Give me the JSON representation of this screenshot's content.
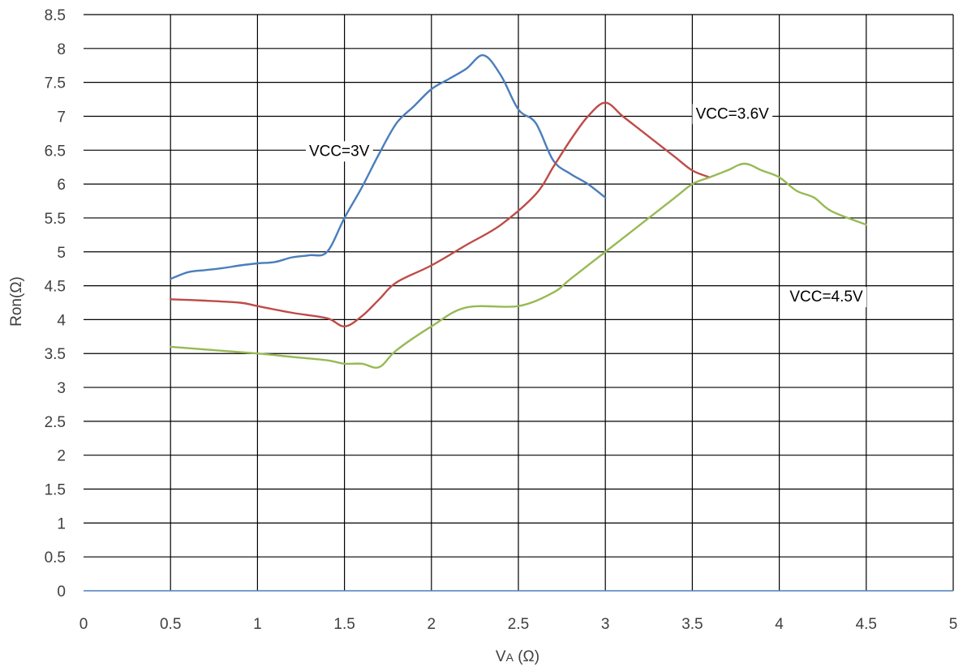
{
  "chart_data": {
    "type": "line",
    "title": "",
    "xlabel": "VA (Ω)",
    "ylabel": "Ron(Ω)",
    "xlim": [
      0,
      5
    ],
    "ylim": [
      0,
      8.5
    ],
    "x_ticks": [
      "0",
      "0.5",
      "1",
      "1.5",
      "2",
      "2.5",
      "3",
      "3.5",
      "4",
      "4.5",
      "5"
    ],
    "y_ticks": [
      "0",
      "0.5",
      "1",
      "1.5",
      "2",
      "2.5",
      "3",
      "3.5",
      "4",
      "4.5",
      "5",
      "5.5",
      "6",
      "6.5",
      "7",
      "7.5",
      "8",
      "8.5"
    ],
    "grid": true,
    "legend": "none",
    "series": [
      {
        "name": "VCC=3V",
        "color": "#4a7ebb",
        "points": [
          [
            0.5,
            4.6
          ],
          [
            0.6,
            4.7
          ],
          [
            0.7,
            4.73
          ],
          [
            0.8,
            4.76
          ],
          [
            0.9,
            4.8
          ],
          [
            1.0,
            4.83
          ],
          [
            1.1,
            4.85
          ],
          [
            1.2,
            4.92
          ],
          [
            1.3,
            4.95
          ],
          [
            1.4,
            5.0
          ],
          [
            1.5,
            5.5
          ],
          [
            1.6,
            5.95
          ],
          [
            1.7,
            6.45
          ],
          [
            1.8,
            6.9
          ],
          [
            1.9,
            7.15
          ],
          [
            2.0,
            7.4
          ],
          [
            2.1,
            7.55
          ],
          [
            2.2,
            7.7
          ],
          [
            2.3,
            7.9
          ],
          [
            2.4,
            7.6
          ],
          [
            2.5,
            7.1
          ],
          [
            2.6,
            6.9
          ],
          [
            2.7,
            6.35
          ],
          [
            2.8,
            6.15
          ],
          [
            2.9,
            6.0
          ],
          [
            3.0,
            5.8
          ]
        ]
      },
      {
        "name": "VCC=3.6V",
        "color": "#be4b48",
        "points": [
          [
            0.5,
            4.3
          ],
          [
            0.7,
            4.28
          ],
          [
            0.9,
            4.25
          ],
          [
            1.0,
            4.2
          ],
          [
            1.2,
            4.1
          ],
          [
            1.4,
            4.02
          ],
          [
            1.5,
            3.9
          ],
          [
            1.6,
            4.05
          ],
          [
            1.7,
            4.3
          ],
          [
            1.8,
            4.55
          ],
          [
            2.0,
            4.8
          ],
          [
            2.2,
            5.1
          ],
          [
            2.4,
            5.4
          ],
          [
            2.6,
            5.85
          ],
          [
            2.7,
            6.25
          ],
          [
            2.8,
            6.65
          ],
          [
            2.9,
            7.0
          ],
          [
            3.0,
            7.2
          ],
          [
            3.1,
            7.0
          ],
          [
            3.2,
            6.8
          ],
          [
            3.3,
            6.6
          ],
          [
            3.4,
            6.4
          ],
          [
            3.5,
            6.2
          ],
          [
            3.6,
            6.1
          ]
        ]
      },
      {
        "name": "VCC=4.5V",
        "color": "#98b954",
        "points": [
          [
            0.5,
            3.6
          ],
          [
            0.75,
            3.55
          ],
          [
            1.0,
            3.5
          ],
          [
            1.2,
            3.45
          ],
          [
            1.4,
            3.4
          ],
          [
            1.5,
            3.35
          ],
          [
            1.6,
            3.35
          ],
          [
            1.7,
            3.3
          ],
          [
            1.8,
            3.55
          ],
          [
            2.0,
            3.9
          ],
          [
            2.2,
            4.18
          ],
          [
            2.5,
            4.2
          ],
          [
            2.7,
            4.4
          ],
          [
            2.8,
            4.6
          ],
          [
            3.0,
            5.0
          ],
          [
            3.2,
            5.4
          ],
          [
            3.4,
            5.8
          ],
          [
            3.5,
            6.0
          ],
          [
            3.6,
            6.1
          ],
          [
            3.7,
            6.2
          ],
          [
            3.8,
            6.3
          ],
          [
            3.9,
            6.2
          ],
          [
            4.0,
            6.1
          ],
          [
            4.1,
            5.9
          ],
          [
            4.2,
            5.8
          ],
          [
            4.3,
            5.6
          ],
          [
            4.5,
            5.4
          ]
        ]
      }
    ],
    "annotations": [
      {
        "text": "VCC=3V",
        "x": 1.47,
        "y": 6.5
      },
      {
        "text": "VCC=3.6V",
        "x": 3.73,
        "y": 7.05
      },
      {
        "text": "VCC=4.5V",
        "x": 4.27,
        "y": 4.35
      }
    ],
    "colors": {
      "axis_line": "#4a7ebb",
      "grid": "#000000",
      "text": "#404040"
    }
  }
}
